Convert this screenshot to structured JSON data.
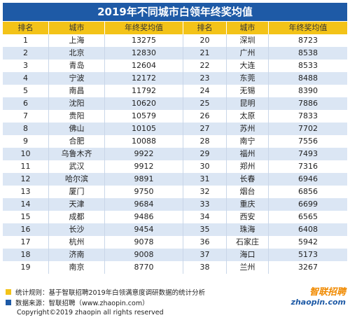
{
  "title": "2019年不同城市白领年终奖均值",
  "table": {
    "headers": [
      "排名",
      "城市",
      "年终奖均值",
      "排名",
      "城市",
      "年终奖均值"
    ],
    "rows": [
      [
        1,
        "上海",
        13275,
        20,
        "深圳",
        8723
      ],
      [
        2,
        "北京",
        12830,
        21,
        "广州",
        8538
      ],
      [
        3,
        "青岛",
        12604,
        22,
        "大连",
        8533
      ],
      [
        4,
        "宁波",
        12172,
        23,
        "东莞",
        8488
      ],
      [
        5,
        "南昌",
        11792,
        24,
        "无锡",
        8390
      ],
      [
        6,
        "沈阳",
        10620,
        25,
        "昆明",
        7886
      ],
      [
        7,
        "贵阳",
        10579,
        26,
        "太原",
        7833
      ],
      [
        8,
        "佛山",
        10105,
        27,
        "苏州",
        7702
      ],
      [
        9,
        "合肥",
        10088,
        28,
        "南宁",
        7556
      ],
      [
        10,
        "乌鲁木齐",
        9922,
        29,
        "福州",
        7493
      ],
      [
        11,
        "武汉",
        9912,
        30,
        "郑州",
        7316
      ],
      [
        12,
        "哈尔滨",
        9891,
        31,
        "长春",
        6946
      ],
      [
        13,
        "厦门",
        9750,
        32,
        "烟台",
        6856
      ],
      [
        14,
        "天津",
        9684,
        33,
        "重庆",
        6699
      ],
      [
        15,
        "成都",
        9486,
        34,
        "西安",
        6565
      ],
      [
        16,
        "长沙",
        9454,
        35,
        "珠海",
        6408
      ],
      [
        17,
        "杭州",
        9078,
        36,
        "石家庄",
        5942
      ],
      [
        18,
        "济南",
        9008,
        37,
        "海口",
        5173
      ],
      [
        19,
        "南京",
        8770,
        38,
        "兰州",
        3267
      ]
    ]
  },
  "notes": [
    "统计规则：基于智联招聘2019年白领满意度调研数据的统计分析",
    "数据来源：智联招聘（www.zhaopin.com）"
  ],
  "copyright": "Copyright©2019 zhaopin all rights reserved",
  "logo": {
    "name": "智联招聘",
    "url": "zhaopin.com"
  }
}
